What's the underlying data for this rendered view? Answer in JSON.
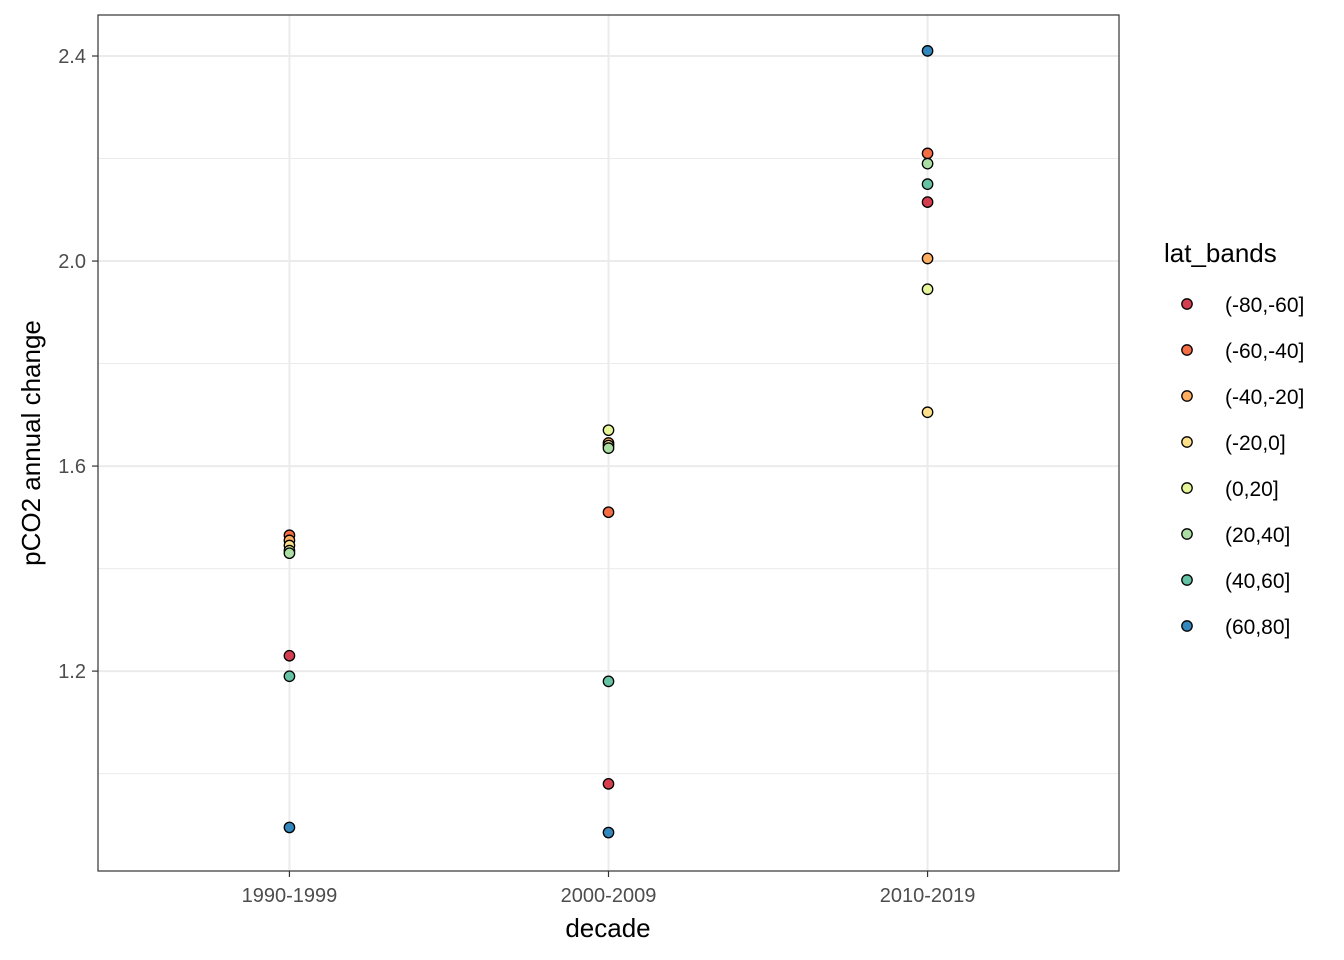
{
  "chart_data": {
    "type": "scatter",
    "xlabel": "decade",
    "ylabel": "pCO2 annual change",
    "categories": [
      "1990-1999",
      "2000-2009",
      "2010-2019"
    ],
    "ylim": [
      0.81,
      2.48
    ],
    "y_ticks": [
      1.2,
      1.6,
      2.0,
      2.4
    ],
    "y_tick_labels": [
      "1.2",
      "1.6",
      "2.0",
      "2.4"
    ],
    "y_minor_ticks": [
      1.0,
      1.4,
      1.8,
      2.2
    ],
    "grid": true,
    "legend": {
      "title": "lat_bands",
      "position": "right"
    },
    "series": [
      {
        "name": "(-80,-60]",
        "color": "#d53e4f",
        "values": [
          1.23,
          0.98,
          2.115
        ]
      },
      {
        "name": "(-60,-40]",
        "color": "#f46d43",
        "values": [
          1.465,
          1.51,
          2.21
        ]
      },
      {
        "name": "(-40,-20]",
        "color": "#fdae61",
        "values": [
          1.455,
          1.645,
          2.005
        ]
      },
      {
        "name": "(-20,0]",
        "color": "#fee08b",
        "values": [
          1.445,
          1.64,
          1.705
        ]
      },
      {
        "name": "(0,20]",
        "color": "#e6f598",
        "values": [
          1.435,
          1.67,
          1.945
        ]
      },
      {
        "name": "(20,40]",
        "color": "#abdda4",
        "values": [
          1.43,
          1.635,
          2.19
        ]
      },
      {
        "name": "(40,60]",
        "color": "#66c2a5",
        "values": [
          1.19,
          1.18,
          2.15
        ]
      },
      {
        "name": "(60,80]",
        "color": "#3288bd",
        "values": [
          0.895,
          0.885,
          2.41
        ]
      }
    ]
  }
}
